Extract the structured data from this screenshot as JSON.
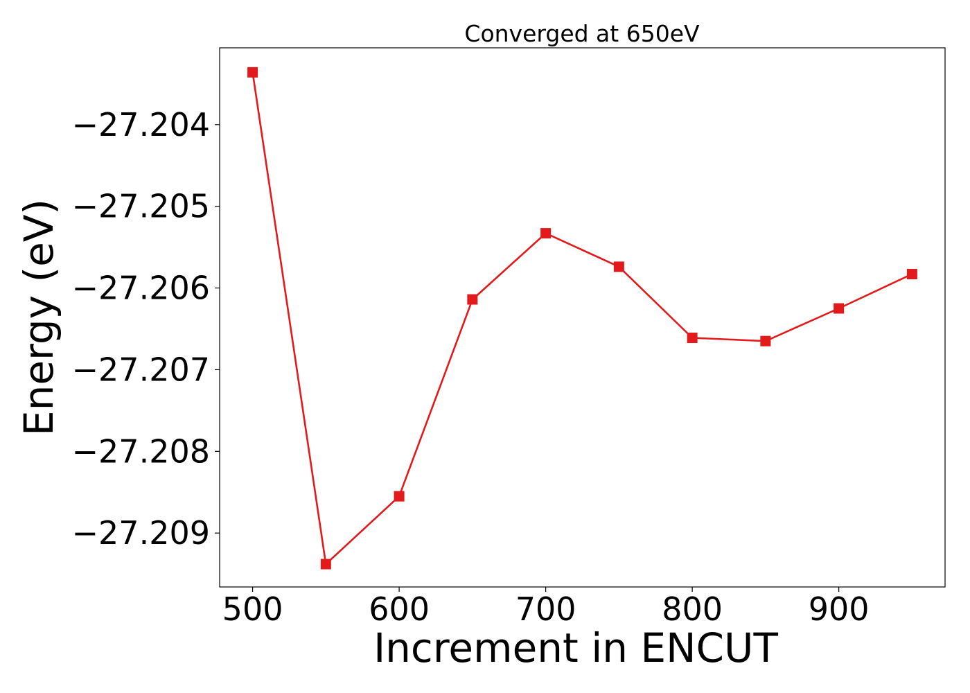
{
  "chart_data": {
    "type": "line",
    "title": "Converged at 650eV",
    "xlabel": "Increment in ENCUT",
    "ylabel": "Energy (eV)",
    "x": [
      500,
      550,
      600,
      650,
      700,
      750,
      800,
      850,
      900,
      950
    ],
    "series": [
      {
        "values": [
          -27.20336,
          -27.20938,
          -27.20855,
          -27.20614,
          -27.20533,
          -27.20574,
          -27.20661,
          -27.20665,
          -27.20625,
          -27.20583
        ],
        "color": "#e31a1c",
        "marker": "square"
      }
    ],
    "xlim": [
      477.5,
      972.5
    ],
    "ylim": [
      -27.20966,
      -27.20306
    ],
    "xticks": [
      500,
      600,
      700,
      800,
      900
    ],
    "xtick_labels": [
      "500",
      "600",
      "700",
      "800",
      "900"
    ],
    "yticks": [
      -27.204,
      -27.205,
      -27.206,
      -27.207,
      -27.208,
      -27.209
    ],
    "ytick_labels": [
      "−27.204",
      "−27.205",
      "−27.206",
      "−27.207",
      "−27.208",
      "−27.209"
    ],
    "grid": false,
    "legend": "none"
  }
}
